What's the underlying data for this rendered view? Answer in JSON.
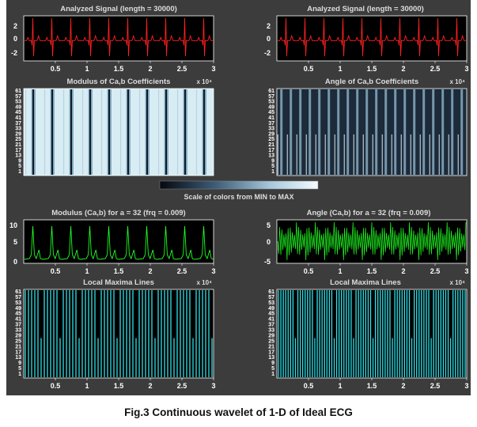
{
  "figure": {
    "caption": "Fig.3 Continuous wavelet of 1-D of Ideal ECG",
    "scale_label": "Scale of colors from MIN to MAX",
    "x_ticks": [
      "0.5",
      "1",
      "1.5",
      "2",
      "2.5",
      "3"
    ],
    "x_exponent": "x 10⁴",
    "scale_ticks": [
      "61",
      "57",
      "53",
      "49",
      "45",
      "41",
      "37",
      "33",
      "29",
      "25",
      "21",
      "17",
      "13",
      "9",
      "5",
      "1"
    ],
    "colors": {
      "window_bg": "#3c3c3c",
      "signal_line": "#ff2020",
      "modulus_line": "#20ff20",
      "maxima_line": "#30e0e8"
    }
  },
  "panels": {
    "signal_left": {
      "title": "Analyzed Signal  (length = 30000)",
      "y_ticks": [
        "2",
        "0",
        "-2"
      ]
    },
    "signal_right": {
      "title": "Analyzed Signal  (length = 30000)",
      "y_ticks": [
        "2",
        "0",
        "-2"
      ]
    },
    "modulus_coeff": {
      "title": "Modulus of Ca,b Coefficients"
    },
    "angle_coeff": {
      "title": "Angle of Ca,b Coefficients"
    },
    "modulus_line": {
      "title": "Modulus (Ca,b)   for a = 32 (frq =   0.009)",
      "y_ticks": [
        "10",
        "5",
        "0"
      ]
    },
    "angle_line": {
      "title": "Angle (Ca,b)   for a = 32 (frq =   0.009)",
      "y_ticks": [
        "5",
        "0",
        "-5"
      ]
    },
    "maxima_left": {
      "title": "Local Maxima Lines"
    },
    "maxima_right": {
      "title": "Local Maxima Lines"
    }
  }
}
